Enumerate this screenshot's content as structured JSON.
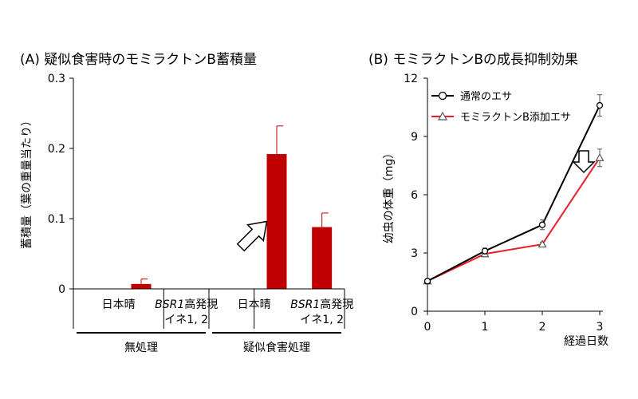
{
  "chart_data": [
    {
      "type": "bar",
      "title": "(A) 疑似食害時のモミラクトンB蓄積量",
      "ylabel": "蓄積量（葉の重量当たり）",
      "ylim": [
        0,
        0.3
      ],
      "yticks": [
        "0",
        "0.1",
        "0.2",
        "0.3"
      ],
      "categories": [
        {
          "line1": "日本晴",
          "line2": ""
        },
        {
          "line1_italic": "BSR1",
          "line1_rest": "高発現",
          "line2": "イネ1, 2"
        },
        {
          "line1": "日本晴",
          "line2": ""
        },
        {
          "line1_italic": "BSR1",
          "line1_rest": "高発現",
          "line2": "イネ1, 2"
        }
      ],
      "groups": [
        "無処理",
        "疑似食害処理"
      ],
      "bars": [
        {
          "value": 0,
          "error": 0
        },
        {
          "value": 0.007,
          "error": 0.007
        },
        {
          "value": 0,
          "error": 0
        },
        {
          "value": 0,
          "error": 0
        },
        {
          "value": 0.192,
          "error": 0.04
        },
        {
          "value": 0.088,
          "error": 0.02
        }
      ],
      "bar_color": "#c00000",
      "annotation": "increase-arrow"
    },
    {
      "type": "line",
      "title": "(B) モミラクトンBの成長抑制効果",
      "xlabel": "経過日数",
      "ylabel": "幼虫の体重（mg）",
      "xlim": [
        0,
        3
      ],
      "ylim": [
        0,
        12
      ],
      "xticks": [
        "0",
        "1",
        "2",
        "3"
      ],
      "yticks": [
        "0",
        "3",
        "6",
        "9",
        "12"
      ],
      "x": [
        0,
        1,
        2,
        3
      ],
      "series": [
        {
          "name": "通常のエサ",
          "values": [
            1.55,
            3.1,
            4.45,
            10.6
          ],
          "errors": [
            0.1,
            0.15,
            0.25,
            0.55
          ],
          "color": "#000000",
          "marker": "circle"
        },
        {
          "name": "モミラクトンB添加エサ",
          "values": [
            1.55,
            2.95,
            3.45,
            7.9
          ],
          "errors": [
            0.1,
            0.1,
            0.1,
            0.45
          ],
          "color": "#ee1c25",
          "marker": "triangle"
        }
      ],
      "legend_position": "top-left",
      "annotation": "decrease-arrow"
    }
  ]
}
